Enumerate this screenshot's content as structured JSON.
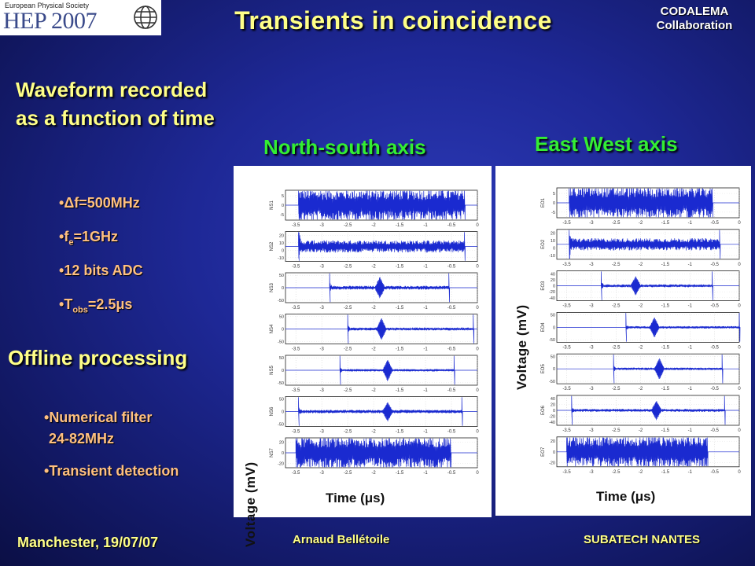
{
  "logo": {
    "line1": "European Physical Society",
    "line2": "HEP 2007"
  },
  "title": "Transients in coincidence",
  "collaboration": {
    "line1": "CODALEMA",
    "line2": "Collaboration"
  },
  "subheading": {
    "line1": "Waveform recorded",
    "line2": "as a function of time"
  },
  "parameters": [
    {
      "text": "Δf=500MHz"
    },
    {
      "pre": "f",
      "sub": "e",
      "post": "=1GHz"
    },
    {
      "text": "12 bits ADC"
    },
    {
      "pre": "T",
      "sub": "obs",
      "post": "=2.5μs"
    }
  ],
  "offline_heading": "Offline processing",
  "processing": {
    "filter_line1": "Numerical filter",
    "filter_line2": "24-82MHz",
    "detection": "Transient detection"
  },
  "footer": {
    "left": "Manchester, 19/07/07",
    "center": "Arnaud Bellétoile",
    "right": "SUBATECH NANTES"
  },
  "chart_data": [
    {
      "type": "line",
      "title": "North-south axis",
      "xlabel": "Time (μs)",
      "ylabel": "Voltage (mV)",
      "x_ticks": [
        "-3.5",
        "-3",
        "-2.5",
        "-2",
        "-1.5",
        "-1",
        "-0.5",
        "0"
      ],
      "xlim": [
        -3.7,
        0
      ],
      "series": [
        {
          "name": "NS1",
          "yticks": [
            "5",
            "0",
            "-5"
          ],
          "ylim": [
            -8,
            8
          ],
          "start": -3.45,
          "end": -0.25,
          "noise": 0.75,
          "pulse": null,
          "amp": 0
        },
        {
          "name": "NS2",
          "yticks": [
            "20",
            "10",
            "0",
            "-10"
          ],
          "ylim": [
            -15,
            25
          ],
          "start": -3.45,
          "end": -0.25,
          "noise": 0.28,
          "pulse": null,
          "amp": 0
        },
        {
          "name": "NS3",
          "yticks": [
            "50",
            "0",
            "-50"
          ],
          "ylim": [
            -60,
            60
          ],
          "start": -2.85,
          "end": -0.55,
          "noise": 0.08,
          "pulse": -1.88,
          "amp": 0.65
        },
        {
          "name": "NS4",
          "yticks": [
            "50",
            "0",
            "-50"
          ],
          "ylim": [
            -60,
            60
          ],
          "start": -2.5,
          "end": -0.08,
          "noise": 0.06,
          "pulse": -1.85,
          "amp": 0.7
        },
        {
          "name": "NS5",
          "yticks": [
            "50",
            "0",
            "-50"
          ],
          "ylim": [
            -60,
            60
          ],
          "start": -2.65,
          "end": -0.45,
          "noise": 0.05,
          "pulse": -1.73,
          "amp": 0.7
        },
        {
          "name": "NS6",
          "yticks": [
            "50",
            "0",
            "-50"
          ],
          "ylim": [
            -60,
            60
          ],
          "start": -3.45,
          "end": -0.3,
          "noise": 0.07,
          "pulse": -1.73,
          "amp": 0.6
        },
        {
          "name": "NS7",
          "yticks": [
            "20",
            "0",
            "-20"
          ],
          "ylim": [
            -28,
            28
          ],
          "start": -3.5,
          "end": -0.52,
          "noise": 0.75,
          "pulse": null,
          "amp": 0
        }
      ]
    },
    {
      "type": "line",
      "title": "East West axis",
      "xlabel": "Time (μs)",
      "ylabel": "Voltage (mV)",
      "x_ticks": [
        "-3.5",
        "-3",
        "-2.5",
        "-2",
        "-1.5",
        "-1",
        "-0.5",
        "0"
      ],
      "xlim": [
        -3.7,
        0
      ],
      "series": [
        {
          "name": "EO1",
          "yticks": [
            "5",
            "0",
            "-5"
          ],
          "ylim": [
            -8,
            8
          ],
          "start": -3.45,
          "end": -0.55,
          "noise": 0.75,
          "pulse": null,
          "amp": 0
        },
        {
          "name": "EO2",
          "yticks": [
            "20",
            "10",
            "0",
            "-10"
          ],
          "ylim": [
            -15,
            25
          ],
          "start": -3.45,
          "end": -0.4,
          "noise": 0.28,
          "pulse": null,
          "amp": 0
        },
        {
          "name": "EO3",
          "yticks": [
            "40",
            "20",
            "0",
            "-20",
            "-40"
          ],
          "ylim": [
            -50,
            50
          ],
          "start": -2.8,
          "end": -0.55,
          "noise": 0.06,
          "pulse": -2.1,
          "amp": 0.6
        },
        {
          "name": "EO4",
          "yticks": [
            "50",
            "0",
            "-50"
          ],
          "ylim": [
            -60,
            60
          ],
          "start": -2.3,
          "end": 0.0,
          "noise": 0.05,
          "pulse": -1.72,
          "amp": 0.65
        },
        {
          "name": "EO5",
          "yticks": [
            "50",
            "0",
            "-50"
          ],
          "ylim": [
            -60,
            60
          ],
          "start": -2.55,
          "end": -0.35,
          "noise": 0.05,
          "pulse": -1.62,
          "amp": 0.7
        },
        {
          "name": "EO6",
          "yticks": [
            "40",
            "20",
            "0",
            "-20",
            "-40"
          ],
          "ylim": [
            -50,
            50
          ],
          "start": -3.4,
          "end": -0.3,
          "noise": 0.06,
          "pulse": -1.68,
          "amp": 0.6
        },
        {
          "name": "EO7",
          "yticks": [
            "20",
            "0",
            "-20"
          ],
          "ylim": [
            -28,
            28
          ],
          "start": -3.5,
          "end": -0.65,
          "noise": 0.75,
          "pulse": null,
          "amp": 0
        }
      ]
    }
  ]
}
